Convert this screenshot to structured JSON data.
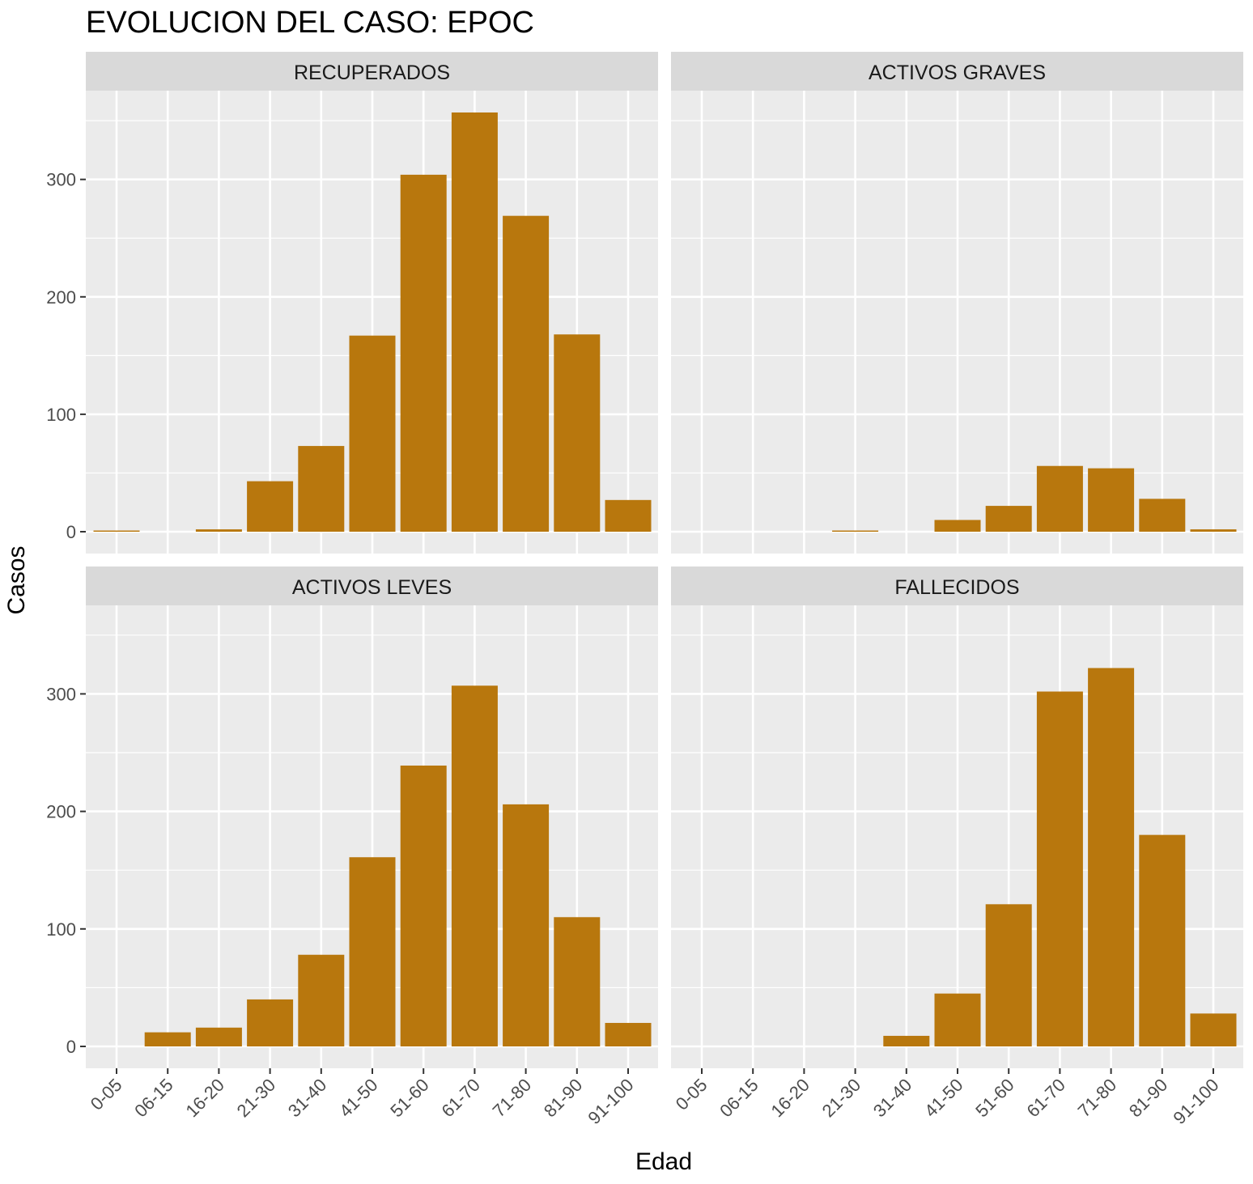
{
  "chart_data": {
    "type": "bar",
    "title": "EVOLUCION DEL CASO: EPOC",
    "xlabel": "Edad",
    "ylabel": "Casos",
    "ylim": [
      -25,
      360
    ],
    "yticks": [
      0,
      100,
      200,
      300
    ],
    "categories": [
      "0-05",
      "06-15",
      "16-20",
      "21-30",
      "31-40",
      "41-50",
      "51-60",
      "61-70",
      "71-80",
      "81-90",
      "91-100"
    ],
    "bar_color": "#B8770D",
    "panel_bg": "#EBEBEB",
    "strip_bg": "#D9D9D9",
    "grid": true,
    "series": [
      {
        "name": "RECUPERADOS",
        "values": [
          1,
          0,
          2,
          43,
          73,
          167,
          304,
          357,
          269,
          168,
          27
        ]
      },
      {
        "name": "ACTIVOS GRAVES",
        "values": [
          0,
          0,
          0,
          1,
          0,
          10,
          22,
          56,
          54,
          28,
          2
        ]
      },
      {
        "name": "ACTIVOS LEVES",
        "values": [
          0,
          12,
          16,
          40,
          78,
          161,
          239,
          307,
          206,
          110,
          20
        ]
      },
      {
        "name": "FALLECIDOS",
        "values": [
          0,
          0,
          0,
          0,
          9,
          45,
          121,
          302,
          322,
          180,
          28
        ]
      }
    ]
  }
}
